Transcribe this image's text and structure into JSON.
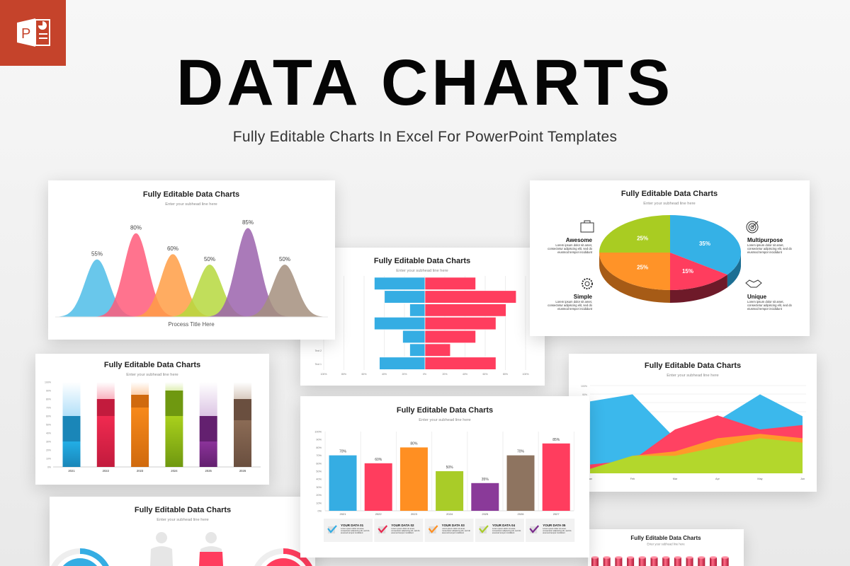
{
  "header": {
    "logo_icon": "powerpoint-logo-icon",
    "title": "DATA CHARTS",
    "subtitle": "Fully Editable Charts In Excel For PowerPoint Templates"
  },
  "chart_data": [
    {
      "id": "bell",
      "type": "area",
      "title": "Fully Editable Data Charts",
      "subtitle": "Enter your subhead line here",
      "xlabel": "Process Title Here",
      "values": [
        55,
        80,
        60,
        50,
        85,
        50
      ],
      "labels": [
        "55%",
        "80%",
        "60%",
        "50%",
        "85%",
        "50%"
      ],
      "colors": [
        "#4fbde8",
        "#ff5a7a",
        "#ff9e45",
        "#b6d83e",
        "#9b63ad",
        "#a48f7e"
      ]
    },
    {
      "id": "butterfly",
      "type": "bar",
      "orientation": "horizontal-diverging",
      "title": "Fully Editable Data Charts",
      "subtitle": "Enter your subhead line here",
      "row_labels": [
        "",
        "",
        "",
        "",
        "",
        "Text 2",
        "Text 1"
      ],
      "series": [
        {
          "values": [
            50,
            40,
            15,
            50,
            22,
            15,
            45
          ],
          "color": "#35ade3"
        },
        {
          "values": [
            50,
            90,
            80,
            70,
            50,
            25,
            70
          ],
          "color": "#ff3d5e"
        }
      ],
      "xticks": [
        "100%",
        "80%",
        "60%",
        "40%",
        "20%",
        "0%",
        "20%",
        "40%",
        "60%",
        "80%",
        "100%"
      ],
      "xlim": [
        -100,
        100
      ]
    },
    {
      "id": "pie",
      "type": "pie",
      "title": "Fully Editable Data Charts",
      "subtitle": "Enter your subhead line here",
      "slices": [
        {
          "value": 35,
          "label": "35%",
          "color": "#35b1e6",
          "side": "#1c6e93"
        },
        {
          "value": 15,
          "label": "15%",
          "color": "#ff3d5e",
          "side": "#6e1a29"
        },
        {
          "value": 25,
          "label": "25%",
          "color": "#ff9328",
          "side": "#a65b16"
        },
        {
          "value": 25,
          "label": "25%",
          "color": "#a9cc22",
          "side": "#6a8314"
        }
      ],
      "features": [
        {
          "name": "Awesome",
          "icon": "briefcase-icon",
          "text": "Lorem ipsum dolor sit amet, consectetur adipiscing elit, sed do eiusmod tempor incididunt",
          "side": "left"
        },
        {
          "name": "Simple",
          "icon": "gear-icon",
          "text": "Lorem ipsum dolor sit amet, consectetur adipiscing elit, sed do eiusmod tempor incididunt",
          "side": "left"
        },
        {
          "name": "Multipurpose",
          "icon": "target-icon",
          "text": "Lorem ipsum dolor sit amet, consectetur adipiscing elit, sed do eiusmod tempor incididunt",
          "side": "right"
        },
        {
          "name": "Unique",
          "icon": "handshake-icon",
          "text": "Lorem ipsum dolor sit amet, consectetur adipiscing elit, sed do eiusmod tempor incididunt",
          "side": "right"
        }
      ]
    },
    {
      "id": "stacked",
      "type": "bar",
      "stacked": true,
      "title": "Fully Editable Data Charts",
      "subtitle": "Enter your subhead line here",
      "categories": [
        "2021",
        "2022",
        "2023",
        "2024",
        "2025",
        "2026"
      ],
      "stacks": [
        [
          30,
          30,
          40
        ],
        [
          60,
          20,
          20
        ],
        [
          70,
          15,
          15
        ],
        [
          60,
          30,
          10
        ],
        [
          30,
          30,
          40
        ],
        [
          55,
          25,
          20
        ]
      ],
      "colors": [
        [
          "#22aee6",
          "#1a86b8",
          "#b3e0f9"
        ],
        [
          "#f02a50",
          "#c21b3d",
          "#f9b3c0"
        ],
        [
          "#f7891a",
          "#d06a0e",
          "#fcd0ac"
        ],
        [
          "#a9d01c",
          "#6f9810",
          "#e0efb6"
        ],
        [
          "#8b339a",
          "#63206f",
          "#dcc5e4"
        ],
        [
          "#8b6b55",
          "#6a4f3f",
          "#d8cabf"
        ]
      ],
      "yticks": [
        "0%",
        "10%",
        "20%",
        "30%",
        "40%",
        "50%",
        "60%",
        "70%",
        "80%",
        "90%",
        "100%"
      ],
      "ylim": [
        0,
        100
      ]
    },
    {
      "id": "area",
      "type": "area",
      "title": "Fully Editable Data Charts",
      "subtitle": "Enter your subhead line here",
      "x": [
        "Jan",
        "Feb",
        "Mar",
        "Apr",
        "May",
        "Jun"
      ],
      "series": [
        {
          "values": [
            82,
            90,
            40,
            60,
            90,
            65
          ],
          "color": "#3bb8ec"
        },
        {
          "values": [
            10,
            15,
            50,
            66,
            50,
            55
          ],
          "color": "#ff4262"
        },
        {
          "values": [
            5,
            20,
            25,
            40,
            45,
            40
          ],
          "color": "#ff9a2a"
        },
        {
          "values": [
            5,
            20,
            20,
            30,
            40,
            35
          ],
          "color": "#b3d72c"
        }
      ],
      "yticks": [
        "90%",
        "100%"
      ],
      "ylim": [
        0,
        100
      ]
    },
    {
      "id": "bars",
      "type": "bar",
      "title": "Fully Editable Data Charts",
      "subtitle": "Enter your subhead line here",
      "categories": [
        "2021",
        "2022",
        "2023",
        "2024",
        "2025",
        "2026",
        "2027"
      ],
      "values": [
        70,
        60,
        80,
        50,
        35,
        70,
        85
      ],
      "labels": [
        "70%",
        "60%",
        "80%",
        "50%",
        "35%",
        "70%",
        "85%"
      ],
      "colors": [
        "#35ade3",
        "#ff3d5e",
        "#ff8f22",
        "#a9cc28",
        "#8a3a99",
        "#8e7460",
        "#ff3d5e"
      ],
      "yticks": [
        "0%",
        "10%",
        "20%",
        "30%",
        "40%",
        "50%",
        "60%",
        "70%",
        "80%",
        "90%",
        "100%"
      ],
      "ylim": [
        0,
        100
      ],
      "legend": [
        {
          "label": "YOUR DATA 01",
          "color": "#35ade3",
          "text": "Lorem ipsum dolor sit amet, consectetur adipiscing elit, sed do eiusmod tempor incididunt"
        },
        {
          "label": "YOUR DATA 02",
          "color": "#e8294f",
          "text": "Lorem ipsum dolor sit amet, consectetur adipiscing elit, sed do eiusmod tempor incididunt"
        },
        {
          "label": "YOUR DATA 03",
          "color": "#ff8f22",
          "text": "Lorem ipsum dolor sit amet, consectetur adipiscing elit, sed do eiusmod tempor incididunt"
        },
        {
          "label": "YOUR DATA 04",
          "color": "#a9cc28",
          "text": "Lorem ipsum dolor sit amet, consectetur adipiscing elit, sed do eiusmod tempor incididunt"
        },
        {
          "label": "YOUR DATA 05",
          "color": "#7a2a8c",
          "text": "Lorem ipsum dolor sit amet, consectetur adipiscing elit, sed do eiusmod tempor incididunt"
        }
      ]
    },
    {
      "id": "people",
      "type": "pie",
      "title": "Fully Editable Data Charts",
      "subtitle": "Enter your subhead line here",
      "colors": [
        "#35ade3",
        "#ff3d5e"
      ]
    },
    {
      "id": "cylinders",
      "type": "bar",
      "title": "Fully Editable Data Charts",
      "subtitle": "Enter your subhead line here",
      "bar_count_visible": 12,
      "color": "#e8294f"
    }
  ]
}
